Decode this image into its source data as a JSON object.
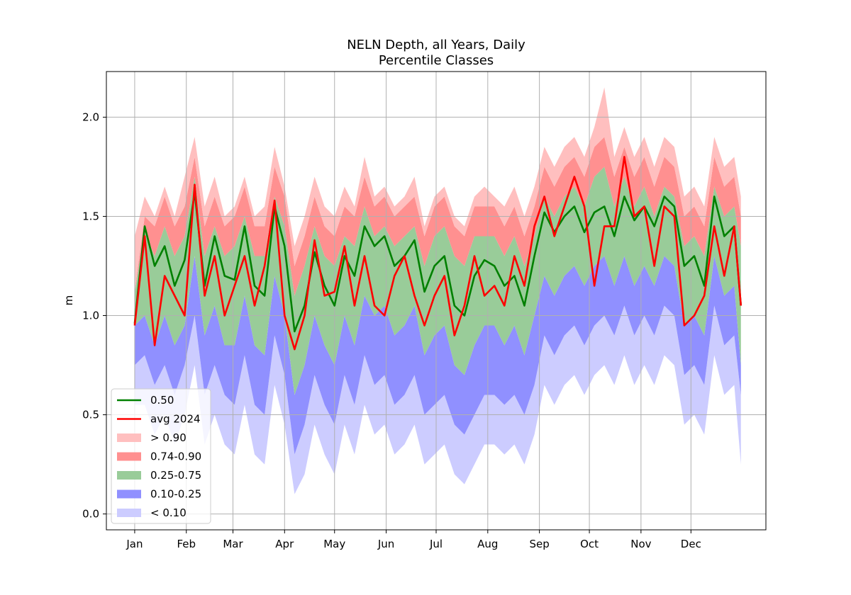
{
  "chart_data": {
    "type": "area",
    "title": "NELN Depth, all Years, Daily",
    "subtitle": "Percentile Classes",
    "xlabel": "",
    "ylabel": "m",
    "xlim_days": [
      -17,
      379
    ],
    "ylim": [
      -0.08,
      2.23
    ],
    "grid": true,
    "legend_position": "lower-left",
    "x_tick_labels": [
      "Jan",
      "Feb",
      "Mar",
      "Apr",
      "May",
      "Jun",
      "Jul",
      "Aug",
      "Sep",
      "Oct",
      "Nov",
      "Dec"
    ],
    "x_tick_days": [
      0,
      31,
      59,
      90,
      120,
      151,
      181,
      212,
      243,
      273,
      304,
      334
    ],
    "y_ticks": [
      0.0,
      0.5,
      1.0,
      1.5,
      2.0
    ],
    "y_tick_labels": [
      "0.0",
      "0.5",
      "1.0",
      "1.5",
      "2.0"
    ],
    "x_days": [
      0,
      6,
      12,
      18,
      24,
      30,
      36,
      42,
      48,
      54,
      60,
      66,
      72,
      78,
      84,
      90,
      96,
      102,
      108,
      114,
      120,
      126,
      132,
      138,
      144,
      150,
      156,
      162,
      168,
      174,
      180,
      186,
      192,
      198,
      204,
      210,
      216,
      222,
      228,
      234,
      240,
      246,
      252,
      258,
      264,
      270,
      276,
      282,
      288,
      294,
      300,
      306,
      312,
      318,
      324,
      330,
      336,
      342,
      348,
      354,
      360,
      364
    ],
    "series": [
      {
        "name": "0.50",
        "type": "line",
        "color": "#008000",
        "values": [
          0.96,
          1.45,
          1.25,
          1.35,
          1.15,
          1.28,
          1.62,
          1.15,
          1.4,
          1.2,
          1.18,
          1.45,
          1.15,
          1.1,
          1.55,
          1.35,
          0.92,
          1.05,
          1.32,
          1.15,
          1.05,
          1.3,
          1.2,
          1.45,
          1.35,
          1.4,
          1.25,
          1.3,
          1.38,
          1.12,
          1.25,
          1.3,
          1.05,
          1.0,
          1.2,
          1.28,
          1.25,
          1.15,
          1.2,
          1.05,
          1.3,
          1.52,
          1.42,
          1.5,
          1.55,
          1.42,
          1.52,
          1.55,
          1.4,
          1.6,
          1.48,
          1.55,
          1.45,
          1.6,
          1.55,
          1.25,
          1.3,
          1.15,
          1.6,
          1.4,
          1.45,
          1.05
        ]
      },
      {
        "name": "avg 2024",
        "type": "line",
        "color": "#ff0000",
        "values": [
          0.95,
          1.4,
          0.85,
          1.2,
          1.1,
          1.0,
          1.66,
          1.1,
          1.3,
          1.0,
          1.15,
          1.3,
          1.05,
          1.25,
          1.58,
          1.0,
          0.83,
          1.0,
          1.38,
          1.1,
          1.12,
          1.35,
          1.05,
          1.3,
          1.05,
          1.0,
          1.2,
          1.3,
          1.1,
          0.95,
          1.1,
          1.2,
          0.9,
          1.05,
          1.3,
          1.1,
          1.15,
          1.05,
          1.3,
          1.15,
          1.45,
          1.6,
          1.4,
          1.55,
          1.7,
          1.55,
          1.15,
          1.45,
          1.45,
          1.8,
          1.5,
          1.55,
          1.25,
          1.55,
          1.5,
          0.95,
          1.0,
          1.1,
          1.45,
          1.2,
          1.45,
          1.05
        ]
      },
      {
        "name": "> 0.90",
        "type": "band",
        "color": "#ffbfbf",
        "low": [
          1.12,
          1.5,
          1.45,
          1.6,
          1.45,
          1.55,
          1.8,
          1.45,
          1.6,
          1.45,
          1.5,
          1.65,
          1.45,
          1.45,
          1.75,
          1.6,
          1.25,
          1.4,
          1.6,
          1.45,
          1.4,
          1.55,
          1.5,
          1.7,
          1.55,
          1.6,
          1.5,
          1.55,
          1.6,
          1.4,
          1.55,
          1.6,
          1.45,
          1.4,
          1.55,
          1.55,
          1.55,
          1.45,
          1.55,
          1.4,
          1.55,
          1.75,
          1.65,
          1.75,
          1.8,
          1.7,
          1.85,
          1.9,
          1.7,
          1.85,
          1.7,
          1.8,
          1.65,
          1.8,
          1.75,
          1.5,
          1.55,
          1.45,
          1.8,
          1.65,
          1.7,
          1.5
        ],
        "high": [
          1.4,
          1.6,
          1.5,
          1.65,
          1.5,
          1.7,
          1.9,
          1.55,
          1.7,
          1.5,
          1.55,
          1.7,
          1.5,
          1.55,
          1.85,
          1.65,
          1.35,
          1.5,
          1.7,
          1.55,
          1.5,
          1.65,
          1.55,
          1.8,
          1.6,
          1.65,
          1.55,
          1.6,
          1.7,
          1.45,
          1.6,
          1.65,
          1.5,
          1.45,
          1.6,
          1.65,
          1.6,
          1.55,
          1.65,
          1.5,
          1.65,
          1.85,
          1.75,
          1.85,
          1.9,
          1.8,
          1.95,
          2.15,
          1.8,
          1.95,
          1.8,
          1.9,
          1.75,
          1.9,
          1.85,
          1.6,
          1.65,
          1.55,
          1.9,
          1.75,
          1.8,
          1.6
        ]
      },
      {
        "name": "0.74-0.90",
        "type": "band",
        "color": "#ff9090",
        "low": [
          1.12,
          1.42,
          1.3,
          1.45,
          1.3,
          1.4,
          1.7,
          1.3,
          1.45,
          1.3,
          1.35,
          1.5,
          1.3,
          1.3,
          1.6,
          1.45,
          1.1,
          1.25,
          1.45,
          1.3,
          1.25,
          1.4,
          1.35,
          1.55,
          1.4,
          1.45,
          1.35,
          1.4,
          1.45,
          1.25,
          1.4,
          1.45,
          1.3,
          1.25,
          1.4,
          1.4,
          1.4,
          1.3,
          1.4,
          1.25,
          1.4,
          1.6,
          1.5,
          1.6,
          1.65,
          1.55,
          1.7,
          1.75,
          1.55,
          1.7,
          1.55,
          1.65,
          1.5,
          1.65,
          1.6,
          1.35,
          1.4,
          1.3,
          1.65,
          1.5,
          1.55,
          1.35
        ],
        "high": [
          1.12,
          1.5,
          1.45,
          1.6,
          1.45,
          1.55,
          1.8,
          1.45,
          1.6,
          1.45,
          1.5,
          1.65,
          1.45,
          1.45,
          1.75,
          1.6,
          1.25,
          1.4,
          1.6,
          1.45,
          1.4,
          1.55,
          1.5,
          1.7,
          1.55,
          1.6,
          1.5,
          1.55,
          1.6,
          1.4,
          1.55,
          1.6,
          1.45,
          1.4,
          1.55,
          1.55,
          1.55,
          1.45,
          1.55,
          1.4,
          1.55,
          1.75,
          1.65,
          1.75,
          1.8,
          1.7,
          1.85,
          1.9,
          1.7,
          1.85,
          1.7,
          1.8,
          1.65,
          1.8,
          1.75,
          1.5,
          1.55,
          1.45,
          1.8,
          1.65,
          1.7,
          1.5
        ]
      },
      {
        "name": "0.25-0.75",
        "type": "band",
        "color": "#99cc99",
        "low": [
          0.95,
          1.0,
          0.85,
          1.0,
          0.85,
          0.95,
          1.3,
          0.9,
          1.05,
          0.85,
          0.85,
          1.1,
          0.85,
          0.8,
          1.2,
          1.0,
          0.6,
          0.75,
          1.0,
          0.85,
          0.75,
          1.0,
          0.85,
          1.1,
          1.0,
          1.05,
          0.9,
          0.95,
          1.05,
          0.8,
          0.9,
          0.95,
          0.75,
          0.7,
          0.85,
          0.95,
          0.95,
          0.85,
          0.95,
          0.8,
          1.0,
          1.2,
          1.1,
          1.2,
          1.25,
          1.15,
          1.25,
          1.3,
          1.15,
          1.3,
          1.15,
          1.25,
          1.15,
          1.3,
          1.25,
          0.95,
          1.0,
          0.9,
          1.3,
          1.1,
          1.15,
          0.75
        ],
        "high": [
          1.12,
          1.42,
          1.3,
          1.45,
          1.3,
          1.4,
          1.7,
          1.3,
          1.45,
          1.3,
          1.35,
          1.5,
          1.3,
          1.3,
          1.6,
          1.45,
          1.1,
          1.25,
          1.45,
          1.3,
          1.25,
          1.4,
          1.35,
          1.55,
          1.4,
          1.45,
          1.35,
          1.4,
          1.45,
          1.25,
          1.4,
          1.45,
          1.3,
          1.25,
          1.4,
          1.4,
          1.4,
          1.3,
          1.4,
          1.25,
          1.4,
          1.6,
          1.5,
          1.6,
          1.65,
          1.55,
          1.7,
          1.75,
          1.55,
          1.7,
          1.55,
          1.65,
          1.5,
          1.65,
          1.6,
          1.35,
          1.4,
          1.3,
          1.65,
          1.5,
          1.55,
          1.35
        ]
      },
      {
        "name": "0.10-0.25",
        "type": "band",
        "color": "#9090ff",
        "low": [
          0.75,
          0.8,
          0.65,
          0.75,
          0.6,
          0.75,
          1.0,
          0.6,
          0.75,
          0.6,
          0.55,
          0.8,
          0.55,
          0.5,
          0.9,
          0.7,
          0.3,
          0.45,
          0.7,
          0.55,
          0.45,
          0.7,
          0.55,
          0.8,
          0.65,
          0.7,
          0.55,
          0.6,
          0.7,
          0.5,
          0.55,
          0.6,
          0.45,
          0.4,
          0.5,
          0.6,
          0.6,
          0.55,
          0.6,
          0.5,
          0.65,
          0.9,
          0.8,
          0.9,
          0.95,
          0.85,
          0.95,
          1.0,
          0.9,
          1.05,
          0.9,
          1.0,
          0.9,
          1.05,
          1.0,
          0.7,
          0.75,
          0.65,
          1.05,
          0.85,
          0.9,
          0.6
        ],
        "high": [
          0.95,
          1.0,
          0.85,
          1.0,
          0.85,
          0.95,
          1.3,
          0.9,
          1.05,
          0.85,
          0.85,
          1.1,
          0.85,
          0.8,
          1.2,
          1.0,
          0.6,
          0.75,
          1.0,
          0.85,
          0.75,
          1.0,
          0.85,
          1.1,
          1.0,
          1.05,
          0.9,
          0.95,
          1.05,
          0.8,
          0.9,
          0.95,
          0.75,
          0.7,
          0.85,
          0.95,
          0.95,
          0.85,
          0.95,
          0.8,
          1.0,
          1.2,
          1.1,
          1.2,
          1.25,
          1.15,
          1.25,
          1.3,
          1.15,
          1.3,
          1.15,
          1.25,
          1.15,
          1.3,
          1.25,
          0.95,
          1.0,
          0.9,
          1.3,
          1.1,
          1.15,
          0.75
        ]
      },
      {
        "name": "< 0.10",
        "type": "band",
        "color": "#ccccff",
        "low": [
          0.55,
          0.55,
          0.4,
          0.5,
          0.35,
          0.5,
          0.75,
          0.35,
          0.5,
          0.35,
          0.3,
          0.55,
          0.3,
          0.25,
          0.65,
          0.45,
          0.1,
          0.2,
          0.45,
          0.3,
          0.2,
          0.45,
          0.3,
          0.55,
          0.4,
          0.45,
          0.3,
          0.35,
          0.45,
          0.25,
          0.3,
          0.35,
          0.2,
          0.15,
          0.25,
          0.35,
          0.35,
          0.3,
          0.35,
          0.25,
          0.4,
          0.65,
          0.55,
          0.65,
          0.7,
          0.6,
          0.7,
          0.75,
          0.65,
          0.8,
          0.65,
          0.75,
          0.65,
          0.8,
          0.75,
          0.45,
          0.5,
          0.4,
          0.8,
          0.6,
          0.65,
          0.25
        ],
        "high": [
          0.75,
          0.8,
          0.65,
          0.75,
          0.6,
          0.75,
          1.0,
          0.6,
          0.75,
          0.6,
          0.55,
          0.8,
          0.55,
          0.5,
          0.9,
          0.7,
          0.3,
          0.45,
          0.7,
          0.55,
          0.45,
          0.7,
          0.55,
          0.8,
          0.65,
          0.7,
          0.55,
          0.6,
          0.7,
          0.5,
          0.55,
          0.6,
          0.45,
          0.4,
          0.5,
          0.6,
          0.6,
          0.55,
          0.6,
          0.5,
          0.65,
          0.9,
          0.8,
          0.9,
          0.95,
          0.85,
          0.95,
          1.0,
          0.9,
          1.05,
          0.9,
          1.0,
          0.9,
          1.05,
          1.0,
          0.7,
          0.75,
          0.65,
          1.05,
          0.85,
          0.9,
          0.6
        ]
      }
    ],
    "legend": [
      {
        "label": "0.50",
        "kind": "line",
        "color": "#008000"
      },
      {
        "label": "avg 2024",
        "kind": "line",
        "color": "#ff0000"
      },
      {
        "label": "> 0.90",
        "kind": "patch",
        "color": "#ffbfbf"
      },
      {
        "label": "0.74-0.90",
        "kind": "patch",
        "color": "#ff9090"
      },
      {
        "label": "0.25-0.75",
        "kind": "patch",
        "color": "#99cc99"
      },
      {
        "label": "0.10-0.25",
        "kind": "patch",
        "color": "#9090ff"
      },
      {
        "label": "< 0.10",
        "kind": "patch",
        "color": "#ccccff"
      }
    ]
  }
}
